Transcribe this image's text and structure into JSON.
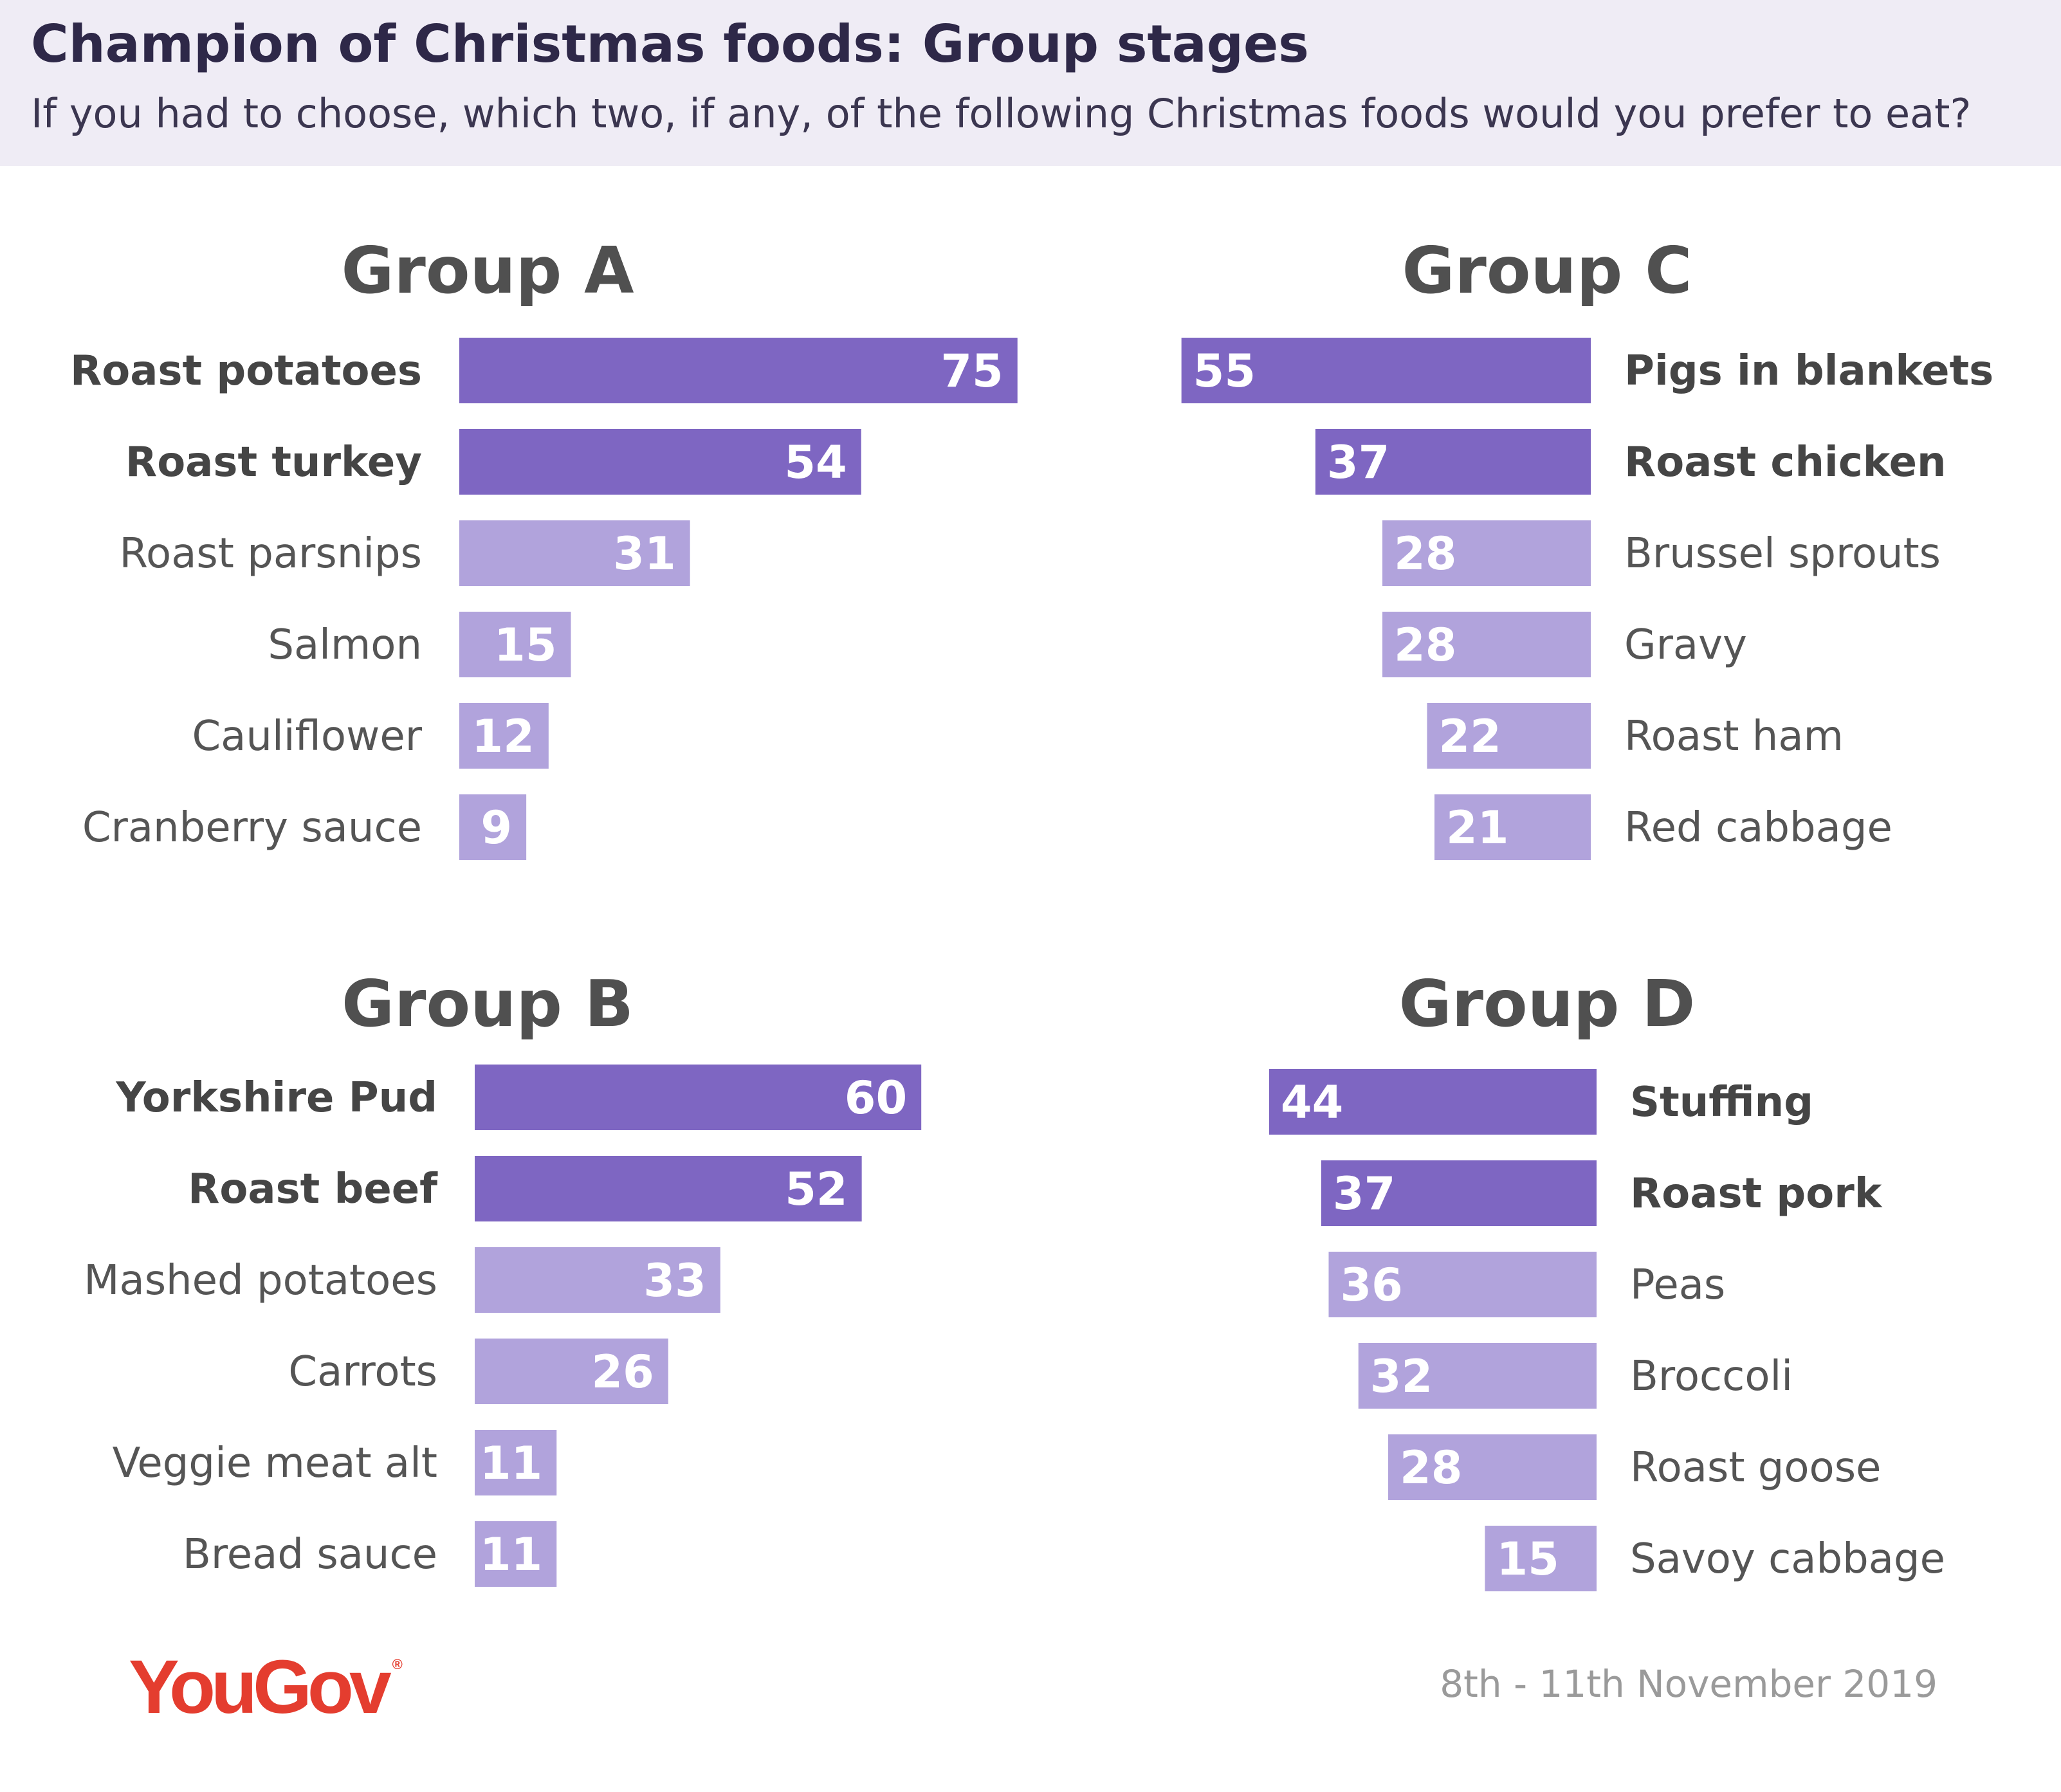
{
  "title": "Champion of Christmas foods: Group stages",
  "subtitle": "If you had to choose, which two, if any, of the following Christmas foods would you prefer to eat?",
  "source": "YouGov",
  "date": "8th - 11th November 2019",
  "colors": {
    "top_two": "#7e66c2",
    "rest": "#b1a3dc",
    "header_bg": "#efecf5",
    "logo": "#e43d2f"
  },
  "chart_data": [
    {
      "type": "bar",
      "orientation": "horizontal",
      "title": "Group A",
      "categories": [
        "Roast potatoes",
        "Roast turkey",
        "Roast parsnips",
        "Salmon",
        "Cauliflower",
        "Cranberry sauce"
      ],
      "values": [
        75,
        54,
        31,
        15,
        12,
        9
      ]
    },
    {
      "type": "bar",
      "orientation": "horizontal",
      "title": "Group C",
      "categories": [
        "Pigs in blankets",
        "Roast chicken",
        "Brussel sprouts",
        "Gravy",
        "Roast ham",
        "Red cabbage"
      ],
      "values": [
        55,
        37,
        28,
        28,
        22,
        21
      ]
    },
    {
      "type": "bar",
      "orientation": "horizontal",
      "title": "Group B",
      "categories": [
        "Yorkshire Pud",
        "Roast beef",
        "Mashed potatoes",
        "Carrots",
        "Veggie meat alt",
        "Bread sauce"
      ],
      "values": [
        60,
        52,
        33,
        26,
        11,
        11
      ]
    },
    {
      "type": "bar",
      "orientation": "horizontal",
      "title": "Group D",
      "categories": [
        "Stuffing",
        "Roast pork",
        "Peas",
        "Broccoli",
        "Roast goose",
        "Savoy cabbage"
      ],
      "values": [
        44,
        37,
        36,
        32,
        28,
        15
      ]
    }
  ]
}
